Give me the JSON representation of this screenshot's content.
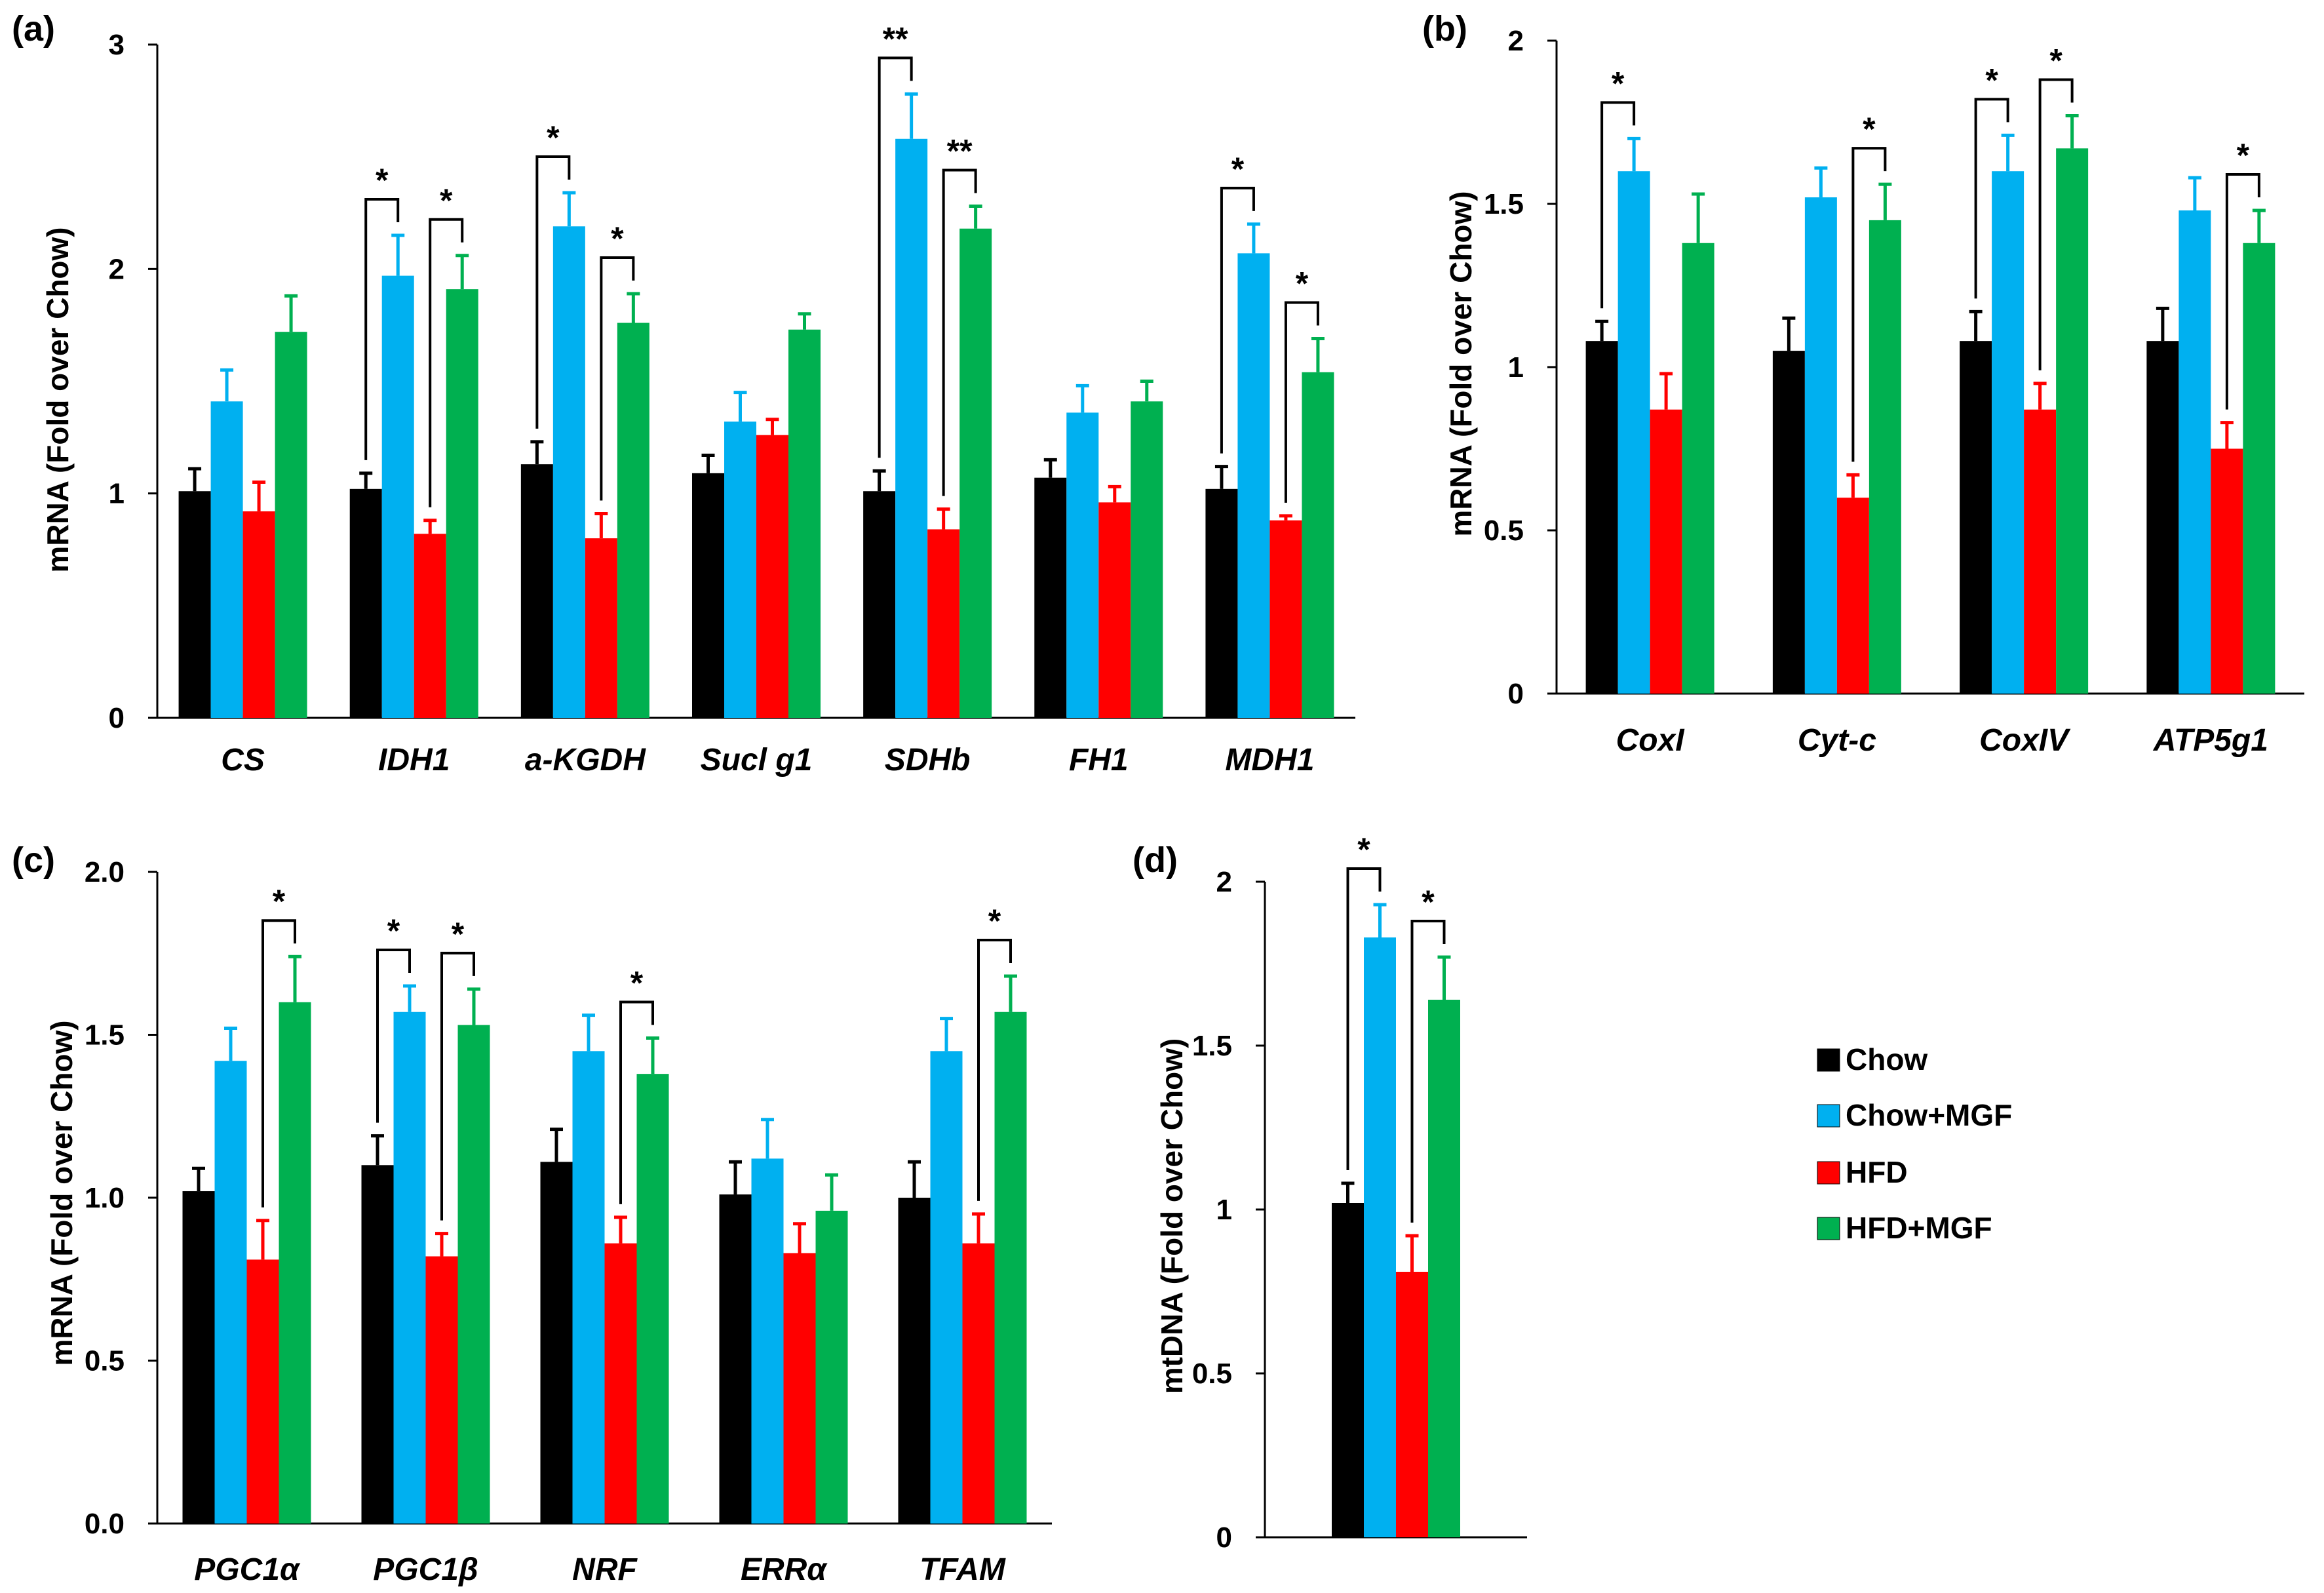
{
  "colors": {
    "series": [
      "#000000",
      "#00b0f0",
      "#ff0000",
      "#00b050"
    ]
  },
  "legend": {
    "items": [
      "Chow",
      "Chow+MGF",
      "HFD",
      "HFD+MGF"
    ]
  },
  "chart_data": [
    {
      "panel_label": "(a)",
      "type": "bar",
      "ylabel": "mRNA (Fold over Chow)",
      "ylim": [
        0,
        3
      ],
      "yticks": [
        "0",
        "1",
        "2",
        "3"
      ],
      "categories": [
        "CS",
        "IDH1",
        "a-KGDH",
        "Sucl g1",
        "SDHb",
        "FH1",
        "MDH1"
      ],
      "series": [
        {
          "name": "Chow",
          "values": [
            1.01,
            1.02,
            1.13,
            1.09,
            1.01,
            1.07,
            1.02
          ],
          "errors": [
            0.1,
            0.07,
            0.1,
            0.08,
            0.09,
            0.08,
            0.1
          ]
        },
        {
          "name": "Chow+MGF",
          "values": [
            1.41,
            1.97,
            2.19,
            1.32,
            2.58,
            1.36,
            2.07
          ],
          "errors": [
            0.14,
            0.18,
            0.15,
            0.13,
            0.2,
            0.12,
            0.13
          ]
        },
        {
          "name": "HFD",
          "values": [
            0.92,
            0.82,
            0.8,
            1.26,
            0.84,
            0.96,
            0.88
          ],
          "errors": [
            0.13,
            0.06,
            0.11,
            0.07,
            0.09,
            0.07,
            0.02
          ]
        },
        {
          "name": "HFD+MGF",
          "values": [
            1.72,
            1.91,
            1.76,
            1.73,
            2.18,
            1.41,
            1.54
          ],
          "errors": [
            0.16,
            0.15,
            0.13,
            0.07,
            0.1,
            0.09,
            0.15
          ]
        }
      ],
      "annotations": [
        {
          "category": 1,
          "from": 0,
          "to": 1,
          "label": "*"
        },
        {
          "category": 1,
          "from": 2,
          "to": 3,
          "label": "*"
        },
        {
          "category": 2,
          "from": 0,
          "to": 1,
          "label": "*"
        },
        {
          "category": 2,
          "from": 2,
          "to": 3,
          "label": "*"
        },
        {
          "category": 4,
          "from": 0,
          "to": 1,
          "label": "**"
        },
        {
          "category": 4,
          "from": 2,
          "to": 3,
          "label": "**"
        },
        {
          "category": 6,
          "from": 0,
          "to": 1,
          "label": "*"
        },
        {
          "category": 6,
          "from": 2,
          "to": 3,
          "label": "*"
        }
      ]
    },
    {
      "panel_label": "(b)",
      "type": "bar",
      "ylabel": "mRNA (Fold over Chow)",
      "ylim": [
        0,
        2
      ],
      "yticks": [
        "0",
        "0.5",
        "1",
        "1.5",
        "2"
      ],
      "categories": [
        "CoxI",
        "Cyt-c",
        "CoxIV",
        "ATP5g1"
      ],
      "series": [
        {
          "name": "Chow",
          "values": [
            1.08,
            1.05,
            1.08,
            1.08
          ],
          "errors": [
            0.06,
            0.1,
            0.09,
            0.1
          ]
        },
        {
          "name": "Chow+MGF",
          "values": [
            1.6,
            1.52,
            1.6,
            1.48
          ],
          "errors": [
            0.1,
            0.09,
            0.11,
            0.1
          ]
        },
        {
          "name": "HFD",
          "values": [
            0.87,
            0.6,
            0.87,
            0.75
          ],
          "errors": [
            0.11,
            0.07,
            0.08,
            0.08
          ]
        },
        {
          "name": "HFD+MGF",
          "values": [
            1.38,
            1.45,
            1.67,
            1.38
          ],
          "errors": [
            0.15,
            0.11,
            0.1,
            0.1
          ]
        }
      ],
      "annotations": [
        {
          "category": 0,
          "from": 0,
          "to": 1,
          "label": "*"
        },
        {
          "category": 1,
          "from": 2,
          "to": 3,
          "label": "*"
        },
        {
          "category": 2,
          "from": 0,
          "to": 1,
          "label": "*"
        },
        {
          "category": 2,
          "from": 2,
          "to": 3,
          "label": "*"
        },
        {
          "category": 3,
          "from": 2,
          "to": 3,
          "label": "*"
        }
      ]
    },
    {
      "panel_label": "(c)",
      "type": "bar",
      "ylabel": "mRNA (Fold over Chow)",
      "ylim": [
        0,
        2
      ],
      "yticks": [
        "0.0",
        "0.5",
        "1.0",
        "1.5",
        "2.0"
      ],
      "categories": [
        "PGC1α",
        "PGC1β",
        "NRF",
        "ERRα",
        "TFAM"
      ],
      "series": [
        {
          "name": "Chow",
          "values": [
            1.02,
            1.1,
            1.11,
            1.01,
            1.0
          ],
          "errors": [
            0.07,
            0.09,
            0.1,
            0.1,
            0.11
          ]
        },
        {
          "name": "Chow+MGF",
          "values": [
            1.42,
            1.57,
            1.45,
            1.12,
            1.45
          ],
          "errors": [
            0.1,
            0.08,
            0.11,
            0.12,
            0.1
          ]
        },
        {
          "name": "HFD",
          "values": [
            0.81,
            0.82,
            0.86,
            0.83,
            0.86
          ],
          "errors": [
            0.12,
            0.07,
            0.08,
            0.09,
            0.09
          ]
        },
        {
          "name": "HFD+MGF",
          "values": [
            1.6,
            1.53,
            1.38,
            0.96,
            1.57
          ],
          "errors": [
            0.14,
            0.11,
            0.11,
            0.11,
            0.11
          ]
        }
      ],
      "annotations": [
        {
          "category": 0,
          "from": 2,
          "to": 3,
          "label": "*"
        },
        {
          "category": 1,
          "from": 0,
          "to": 1,
          "label": "*"
        },
        {
          "category": 1,
          "from": 2,
          "to": 3,
          "label": "*"
        },
        {
          "category": 2,
          "from": 2,
          "to": 3,
          "label": "*"
        },
        {
          "category": 4,
          "from": 2,
          "to": 3,
          "label": "*"
        }
      ]
    },
    {
      "panel_label": "(d)",
      "type": "bar",
      "ylabel": "mtDNA (Fold over Chow)",
      "ylim": [
        0,
        2
      ],
      "yticks": [
        "0",
        "0.5",
        "1",
        "1.5",
        "2"
      ],
      "categories": [
        ""
      ],
      "series": [
        {
          "name": "Chow",
          "values": [
            1.02
          ],
          "errors": [
            0.06
          ]
        },
        {
          "name": "Chow+MGF",
          "values": [
            1.83
          ],
          "errors": [
            0.1
          ]
        },
        {
          "name": "HFD",
          "values": [
            0.81
          ],
          "errors": [
            0.11
          ]
        },
        {
          "name": "HFD+MGF",
          "values": [
            1.64
          ],
          "errors": [
            0.13
          ]
        }
      ],
      "annotations": [
        {
          "category": 0,
          "from": 0,
          "to": 1,
          "label": "*"
        },
        {
          "category": 0,
          "from": 2,
          "to": 3,
          "label": "*"
        }
      ]
    }
  ]
}
